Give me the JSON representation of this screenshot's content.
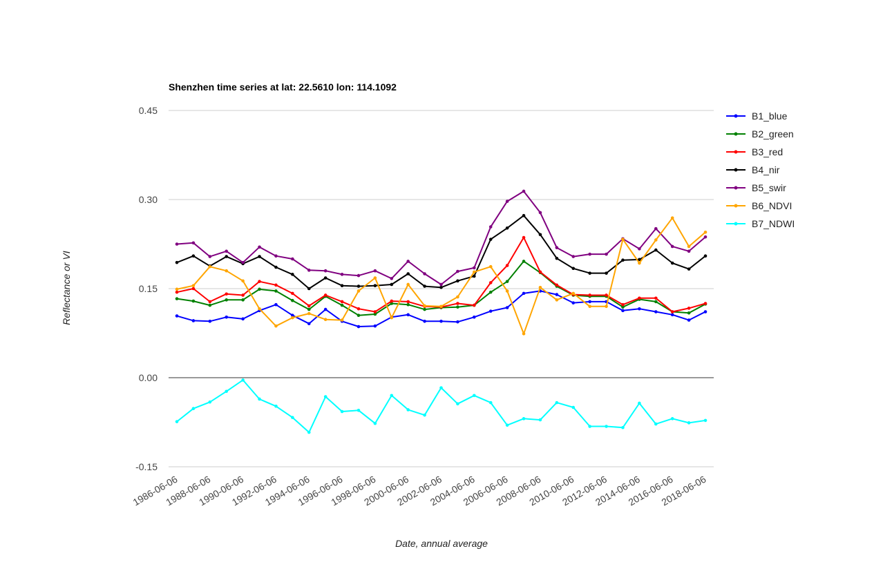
{
  "chart_data": {
    "type": "line",
    "title": "Shenzhen time series at lat: 22.5610 lon: 114.1092",
    "xlabel": "Date, annual average",
    "ylabel": "Reflectance or VI",
    "ylim": [
      -0.15,
      0.45
    ],
    "yticks": [
      "0.45",
      "0.30",
      "0.15",
      "0.00",
      "-0.15"
    ],
    "ytick_values": [
      0.45,
      0.3,
      0.15,
      0.0,
      -0.15
    ],
    "x": [
      "1986-06-06",
      "1987-06-06",
      "1988-06-06",
      "1989-06-06",
      "1990-06-06",
      "1991-06-06",
      "1992-06-06",
      "1993-06-06",
      "1994-06-06",
      "1995-06-06",
      "1996-06-06",
      "1997-06-06",
      "1998-06-06",
      "1999-06-06",
      "2000-06-06",
      "2001-06-06",
      "2002-06-06",
      "2003-06-06",
      "2004-06-06",
      "2005-06-06",
      "2006-06-06",
      "2007-06-06",
      "2008-06-06",
      "2009-06-06",
      "2010-06-06",
      "2011-06-06",
      "2012-06-06",
      "2013-06-06",
      "2014-06-06",
      "2015-06-06",
      "2016-06-06",
      "2017-06-06",
      "2018-06-06"
    ],
    "xticks": [
      "1986-06-06",
      "1988-06-06",
      "1990-06-06",
      "1992-06-06",
      "1994-06-06",
      "1996-06-06",
      "1998-06-06",
      "2000-06-06",
      "2002-06-06",
      "2004-06-06",
      "2006-06-06",
      "2008-06-06",
      "2010-06-06",
      "2012-06-06",
      "2014-06-06",
      "2016-06-06",
      "2018-06-06"
    ],
    "grid": true,
    "legend_position": "right",
    "series": [
      {
        "name": "B1_blue",
        "color": "#0000ff",
        "values": [
          0.104,
          0.096,
          0.095,
          0.102,
          0.099,
          0.113,
          0.123,
          0.105,
          0.091,
          0.115,
          0.095,
          0.086,
          0.087,
          0.102,
          0.106,
          0.095,
          0.095,
          0.094,
          0.102,
          0.112,
          0.118,
          0.142,
          0.146,
          0.14,
          0.126,
          0.128,
          0.128,
          0.113,
          0.116,
          0.111,
          0.106,
          0.097,
          0.111
        ]
      },
      {
        "name": "B2_green",
        "color": "#008000",
        "values": [
          0.133,
          0.129,
          0.122,
          0.131,
          0.131,
          0.149,
          0.146,
          0.13,
          0.115,
          0.137,
          0.122,
          0.105,
          0.107,
          0.125,
          0.123,
          0.115,
          0.118,
          0.119,
          0.122,
          0.144,
          0.162,
          0.196,
          0.177,
          0.154,
          0.139,
          0.137,
          0.137,
          0.119,
          0.132,
          0.128,
          0.111,
          0.109,
          0.124
        ]
      },
      {
        "name": "B3_red",
        "color": "#ff0000",
        "values": [
          0.144,
          0.15,
          0.128,
          0.141,
          0.139,
          0.162,
          0.156,
          0.142,
          0.121,
          0.139,
          0.128,
          0.116,
          0.111,
          0.129,
          0.128,
          0.12,
          0.119,
          0.125,
          0.122,
          0.16,
          0.189,
          0.236,
          0.178,
          0.156,
          0.14,
          0.139,
          0.139,
          0.123,
          0.134,
          0.134,
          0.111,
          0.117,
          0.125
        ]
      },
      {
        "name": "B4_nir",
        "color": "#000000",
        "values": [
          0.194,
          0.205,
          0.188,
          0.204,
          0.192,
          0.204,
          0.186,
          0.174,
          0.15,
          0.168,
          0.155,
          0.154,
          0.155,
          0.157,
          0.175,
          0.154,
          0.152,
          0.163,
          0.171,
          0.233,
          0.252,
          0.273,
          0.241,
          0.201,
          0.184,
          0.176,
          0.176,
          0.198,
          0.199,
          0.215,
          0.193,
          0.183,
          0.205
        ]
      },
      {
        "name": "B5_swir",
        "color": "#800080",
        "values": [
          0.225,
          0.227,
          0.204,
          0.213,
          0.194,
          0.22,
          0.205,
          0.2,
          0.181,
          0.18,
          0.174,
          0.172,
          0.18,
          0.167,
          0.196,
          0.175,
          0.157,
          0.179,
          0.185,
          0.254,
          0.297,
          0.314,
          0.278,
          0.219,
          0.204,
          0.208,
          0.208,
          0.234,
          0.217,
          0.251,
          0.221,
          0.213,
          0.237
        ]
      },
      {
        "name": "B6_NDVI",
        "color": "#ffa500",
        "values": [
          0.149,
          0.155,
          0.187,
          0.18,
          0.163,
          0.116,
          0.087,
          0.101,
          0.108,
          0.098,
          0.097,
          0.146,
          0.168,
          0.101,
          0.157,
          0.121,
          0.12,
          0.136,
          0.178,
          0.187,
          0.146,
          0.074,
          0.152,
          0.131,
          0.142,
          0.12,
          0.12,
          0.233,
          0.193,
          0.232,
          0.269,
          0.221,
          0.245
        ]
      },
      {
        "name": "B7_NDWI",
        "color": "#00ffff",
        "values": [
          -0.074,
          -0.052,
          -0.041,
          -0.023,
          -0.004,
          -0.036,
          -0.048,
          -0.067,
          -0.092,
          -0.032,
          -0.057,
          -0.055,
          -0.077,
          -0.03,
          -0.054,
          -0.063,
          -0.017,
          -0.044,
          -0.03,
          -0.042,
          -0.08,
          -0.069,
          -0.071,
          -0.042,
          -0.05,
          -0.082,
          -0.082,
          -0.084,
          -0.043,
          -0.078,
          -0.069,
          -0.076,
          -0.072
        ]
      }
    ]
  }
}
